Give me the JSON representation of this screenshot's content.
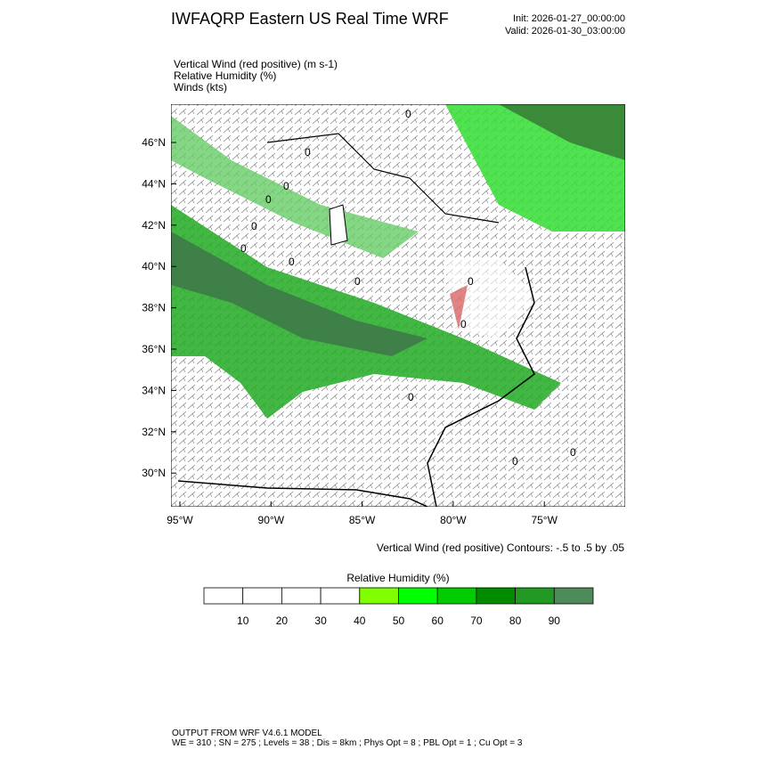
{
  "header": {
    "title": "IWFAQRP Eastern US Real Time WRF",
    "init": "Init: 2026-01-27_00:00:00",
    "valid": "Valid: 2026-01-30_03:00:00"
  },
  "fields": [
    "Vertical Wind (red positive)   (m s-1)",
    "Relative Humidity   (%)",
    "Winds   (kts)"
  ],
  "map": {
    "lat_ticks": [
      "46°N",
      "44°N",
      "42°N",
      "40°N",
      "38°N",
      "36°N",
      "34°N",
      "32°N",
      "30°N"
    ],
    "lon_ticks": [
      "95°W",
      "90°W",
      "85°W",
      "80°W",
      "75°W"
    ],
    "contour_labels": [
      "0",
      "0",
      "0",
      "0",
      "0",
      "0",
      "0",
      "0",
      "0",
      "0",
      "0",
      "0",
      "0"
    ],
    "contour_note": "Vertical Wind (red positive) Contours: -.5 to .5 by .05"
  },
  "colorbar": {
    "title": "Relative Humidity  (%)",
    "colors": [
      "#ffffff",
      "#ffffff",
      "#ffffff",
      "#ffffff",
      "#80ff00",
      "#00ff00",
      "#00cc00",
      "#008b00",
      "#229922",
      "#4f8a5a"
    ],
    "labels": [
      "10",
      "20",
      "30",
      "40",
      "50",
      "60",
      "70",
      "80",
      "90"
    ]
  },
  "footer": {
    "line1": "OUTPUT FROM WRF V4.6.1 MODEL",
    "line2": "WE = 310 ; SN = 275 ; Levels = 38 ; Dis = 8km ; Phys Opt = 8 ; PBL Opt = 1 ; Cu Opt = 3"
  }
}
